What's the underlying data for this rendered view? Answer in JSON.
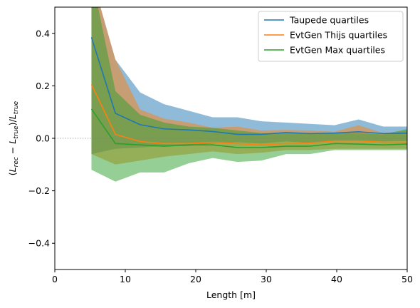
{
  "chart_data": {
    "type": "line",
    "title": "",
    "xlabel": "Length [m]",
    "ylabel": "(L_rec − L_true)/L_true",
    "ylabel_parts": {
      "open": "(",
      "L1": "L",
      "s1": "rec",
      "minus": " − ",
      "L2": "L",
      "s2": "true",
      "mid": ")/",
      "L3": "L",
      "s3": "true"
    },
    "xlim": [
      0,
      50
    ],
    "ylim": [
      -0.5,
      0.5
    ],
    "xticks": [
      "0",
      "10",
      "20",
      "30",
      "40",
      "50"
    ],
    "yticks": [
      "−0.4",
      "−0.2",
      "0.0",
      "0.2",
      "0.4"
    ],
    "xtick_values": [
      0,
      10,
      20,
      30,
      40,
      50
    ],
    "ytick_values": [
      -0.4,
      -0.2,
      0.0,
      0.2,
      0.4
    ],
    "reference_line_y": 0.0,
    "grid": false,
    "legend_position": "top-right",
    "x": [
      5.2,
      8.6,
      12.1,
      15.5,
      19.0,
      22.4,
      25.9,
      29.3,
      32.8,
      36.2,
      39.7,
      43.1,
      46.6,
      50.0
    ],
    "series": [
      {
        "name": "Taupede quartiles",
        "color": "#1f77b4",
        "median": [
          0.385,
          0.095,
          0.052,
          0.036,
          0.032,
          0.026,
          0.015,
          0.015,
          0.022,
          0.018,
          0.02,
          0.025,
          0.018,
          0.02
        ],
        "upper": [
          0.62,
          0.3,
          0.175,
          0.13,
          0.105,
          0.08,
          0.08,
          0.065,
          0.06,
          0.055,
          0.05,
          0.072,
          0.045,
          0.045
        ],
        "lower": [
          -0.06,
          -0.04,
          -0.035,
          -0.03,
          -0.03,
          -0.02,
          -0.015,
          -0.02,
          -0.012,
          -0.018,
          -0.01,
          -0.008,
          -0.012,
          -0.01
        ]
      },
      {
        "name": "EvtGen Thijs quartiles",
        "color": "#ff7f0e",
        "median": [
          0.205,
          0.015,
          -0.012,
          -0.02,
          -0.02,
          -0.015,
          -0.02,
          -0.025,
          -0.02,
          -0.018,
          -0.01,
          -0.01,
          -0.015,
          -0.015
        ],
        "upper": [
          0.62,
          0.3,
          0.11,
          0.075,
          0.06,
          0.04,
          0.045,
          0.03,
          0.032,
          0.03,
          0.025,
          0.05,
          0.02,
          0.03
        ],
        "lower": [
          -0.06,
          -0.1,
          -0.085,
          -0.07,
          -0.06,
          -0.05,
          -0.06,
          -0.055,
          -0.045,
          -0.045,
          -0.04,
          -0.04,
          -0.04,
          -0.04
        ]
      },
      {
        "name": "EvtGen Max quartiles",
        "color": "#2ca02c",
        "median": [
          0.112,
          -0.02,
          -0.025,
          -0.03,
          -0.025,
          -0.025,
          -0.035,
          -0.035,
          -0.03,
          -0.03,
          -0.02,
          -0.022,
          -0.025,
          -0.022
        ],
        "upper": [
          0.62,
          0.18,
          0.09,
          0.06,
          0.045,
          0.04,
          0.03,
          0.02,
          0.02,
          0.018,
          0.02,
          0.02,
          0.015,
          0.035
        ],
        "lower": [
          -0.12,
          -0.165,
          -0.13,
          -0.13,
          -0.095,
          -0.075,
          -0.09,
          -0.085,
          -0.06,
          -0.06,
          -0.045,
          -0.045,
          -0.045,
          -0.045
        ]
      }
    ]
  }
}
